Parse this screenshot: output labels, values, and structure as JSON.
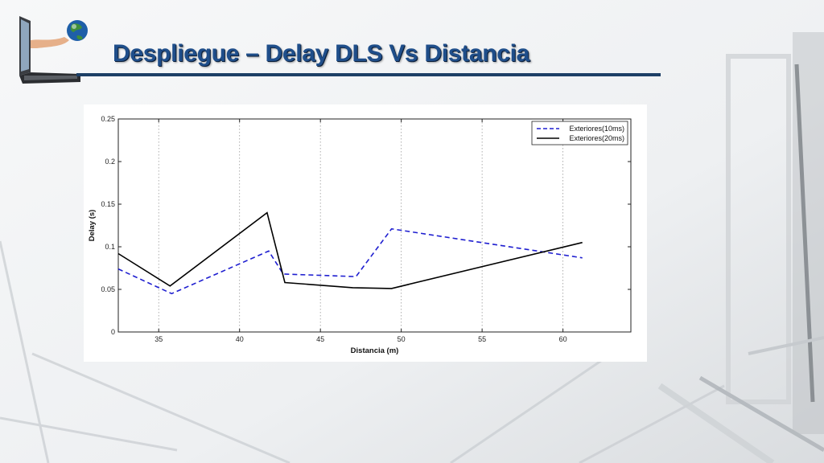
{
  "slide": {
    "title": "Despliegue – Delay DLS Vs Distancia"
  },
  "logo": {
    "icon": "laptop-globe-hand-icon"
  },
  "colors": {
    "title": "#1f4e8a",
    "rule": "#1d3f66",
    "series_10ms": "#1f1fd0",
    "series_20ms": "#000000"
  },
  "chart_data": {
    "type": "line",
    "title": "",
    "xlabel": "Distancia (m)",
    "ylabel": "Delay (s)",
    "xlim": [
      32.5,
      64.2
    ],
    "ylim": [
      0,
      0.25
    ],
    "xticks": [
      35,
      40,
      45,
      50,
      55,
      60
    ],
    "yticks": [
      0,
      0.05,
      0.1,
      0.15,
      0.2,
      0.25
    ],
    "xtick_labels": [
      "35",
      "40",
      "45",
      "50",
      "55",
      "60"
    ],
    "ytick_labels": [
      "0",
      "0.05",
      "0.1",
      "0.15",
      "0.2",
      "0.25"
    ],
    "grid": "vertical dotted",
    "legend_position": "top-right",
    "series": [
      {
        "name": "Exteriores(10ms)",
        "style": "dashed",
        "color": "#1f1fd0",
        "x": [
          32.5,
          35.8,
          41.8,
          42.7,
          47.2,
          49.4,
          61.2
        ],
        "y": [
          0.074,
          0.045,
          0.095,
          0.068,
          0.065,
          0.121,
          0.087
        ]
      },
      {
        "name": "Exteriores(20ms)",
        "style": "solid",
        "color": "#000000",
        "x": [
          32.5,
          35.7,
          41.7,
          42.8,
          47.0,
          49.4,
          61.2
        ],
        "y": [
          0.092,
          0.054,
          0.14,
          0.058,
          0.052,
          0.051,
          0.105
        ]
      }
    ]
  }
}
